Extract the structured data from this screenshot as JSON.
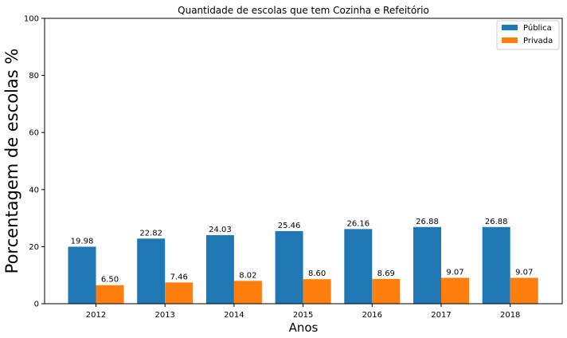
{
  "chart_data": {
    "type": "bar",
    "title": "Quantidade de escolas que tem Cozinha e Refeitório",
    "xlabel": "Anos",
    "ylabel": "Porcentagem de escolas %",
    "categories": [
      "2012",
      "2013",
      "2014",
      "2015",
      "2016",
      "2017",
      "2018"
    ],
    "series": [
      {
        "name": "Pública",
        "color": "#1f77b4",
        "values": [
          19.98,
          22.82,
          24.03,
          25.46,
          26.16,
          26.88,
          26.88
        ],
        "labels": [
          "19.98",
          "22.82",
          "24.03",
          "25.46",
          "26.16",
          "26.88",
          "26.88"
        ]
      },
      {
        "name": "Privada",
        "color": "#ff7f0e",
        "values": [
          6.5,
          7.46,
          8.02,
          8.6,
          8.69,
          9.07,
          9.07
        ],
        "labels": [
          "6.50",
          "7.46",
          "8.02",
          "8.60",
          "8.69",
          "9.07",
          "9.07"
        ]
      }
    ],
    "ylim": [
      0,
      100
    ],
    "yticks": [
      "0",
      "20",
      "40",
      "60",
      "80",
      "100"
    ],
    "grid": false,
    "legend_position": "top-right"
  }
}
